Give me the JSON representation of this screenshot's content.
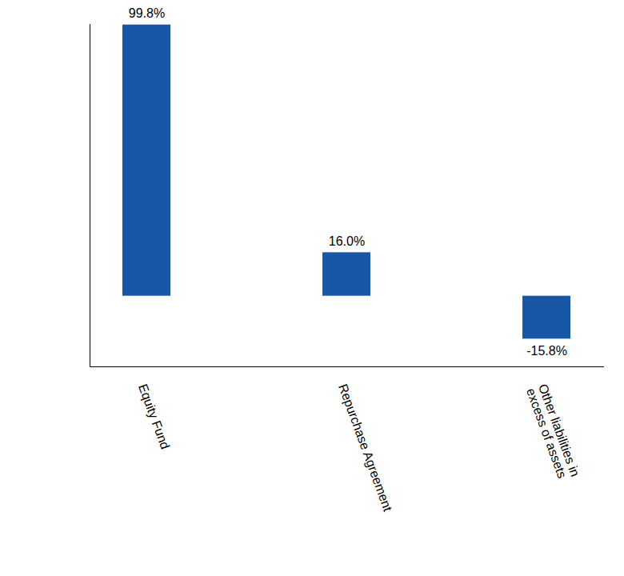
{
  "chart_data": {
    "type": "bar",
    "categories": [
      "Equity Fund",
      "Repurchase Agreement",
      "Other liabilities in excess of assets"
    ],
    "values": [
      99.8,
      16.0,
      -15.8
    ],
    "value_labels": [
      "99.8%",
      "16.0%",
      "-15.8%"
    ],
    "color": "#1757a6",
    "ylim": [
      -26,
      100
    ],
    "yticks": [],
    "grid": false,
    "data_labels": true,
    "tick_labels": "x"
  }
}
